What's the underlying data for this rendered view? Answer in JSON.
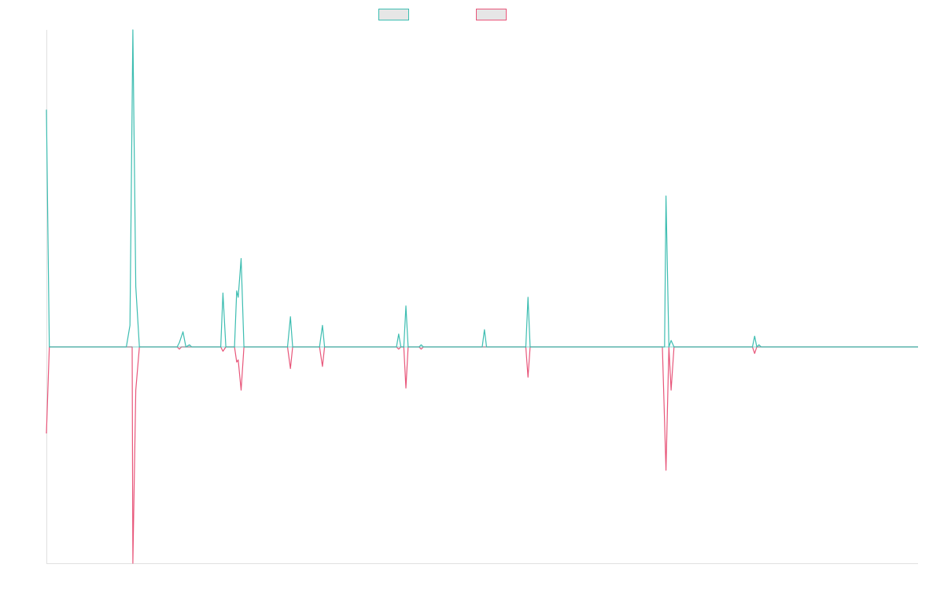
{
  "chart_data": {
    "type": "line",
    "title": "",
    "xlabel": "",
    "ylabel": "",
    "grid": false,
    "legend_position": "top-center",
    "x_range": [
      0,
      1200
    ],
    "y_range": [
      -1.0,
      1.47
    ],
    "series": [
      {
        "name": "",
        "color": "#3dbdb1",
        "points": [
          [
            0,
            1.1
          ],
          [
            4,
            0
          ],
          [
            110,
            0
          ],
          [
            115,
            0.1
          ],
          [
            119,
            1.47
          ],
          [
            123,
            0.28
          ],
          [
            128,
            0
          ],
          [
            180,
            0
          ],
          [
            183,
            0.02
          ],
          [
            188,
            0.07
          ],
          [
            192,
            0
          ],
          [
            197,
            0.01
          ],
          [
            200,
            0
          ],
          [
            240,
            0
          ],
          [
            243,
            0.25
          ],
          [
            247,
            0
          ],
          [
            259,
            0
          ],
          [
            262,
            0.26
          ],
          [
            264,
            0.23
          ],
          [
            268,
            0.41
          ],
          [
            272,
            0
          ],
          [
            296,
            0
          ],
          [
            300,
            0
          ],
          [
            332,
            0
          ],
          [
            336,
            0.14
          ],
          [
            339,
            0
          ],
          [
            376,
            0
          ],
          [
            380,
            0.1
          ],
          [
            383,
            0
          ],
          [
            414,
            0
          ],
          [
            421,
            0
          ],
          [
            482,
            0
          ],
          [
            485,
            0.06
          ],
          [
            488,
            0
          ],
          [
            492,
            0
          ],
          [
            495,
            0.19
          ],
          [
            498,
            0
          ],
          [
            513,
            0
          ],
          [
            516,
            0.01
          ],
          [
            519,
            0
          ],
          [
            600,
            0
          ],
          [
            603,
            0.08
          ],
          [
            606,
            0
          ],
          [
            640,
            0
          ],
          [
            645,
            0
          ],
          [
            660,
            0
          ],
          [
            663,
            0.23
          ],
          [
            666,
            0
          ],
          [
            705,
            0
          ],
          [
            710,
            0
          ],
          [
            848,
            0
          ],
          [
            851,
            0
          ],
          [
            853,
            0.7
          ],
          [
            857,
            0
          ],
          [
            860,
            0.03
          ],
          [
            864,
            0
          ],
          [
            911,
            0
          ],
          [
            913,
            0
          ],
          [
            915,
            0
          ],
          [
            972,
            0
          ],
          [
            975,
            0.05
          ],
          [
            978,
            0
          ],
          [
            981,
            0.01
          ],
          [
            984,
            0
          ],
          [
            1098,
            0
          ],
          [
            1101,
            0
          ],
          [
            1104,
            0
          ],
          [
            1200,
            0
          ]
        ]
      },
      {
        "name": "",
        "color": "#e8567a",
        "points": [
          [
            0,
            -0.4
          ],
          [
            4,
            0
          ],
          [
            118,
            0
          ],
          [
            119,
            -1.0
          ],
          [
            123,
            -0.2
          ],
          [
            128,
            0
          ],
          [
            180,
            0
          ],
          [
            183,
            -0.01
          ],
          [
            186,
            0
          ],
          [
            240,
            0
          ],
          [
            243,
            -0.02
          ],
          [
            247,
            0
          ],
          [
            259,
            0
          ],
          [
            262,
            -0.07
          ],
          [
            264,
            -0.06
          ],
          [
            268,
            -0.2
          ],
          [
            272,
            0
          ],
          [
            332,
            0
          ],
          [
            336,
            -0.1
          ],
          [
            339,
            0
          ],
          [
            376,
            0
          ],
          [
            380,
            -0.09
          ],
          [
            383,
            0
          ],
          [
            482,
            0
          ],
          [
            485,
            -0.01
          ],
          [
            488,
            0
          ],
          [
            492,
            0
          ],
          [
            495,
            -0.19
          ],
          [
            498,
            0
          ],
          [
            513,
            0
          ],
          [
            516,
            -0.01
          ],
          [
            519,
            0
          ],
          [
            660,
            0
          ],
          [
            663,
            -0.14
          ],
          [
            666,
            0
          ],
          [
            848,
            0
          ],
          [
            853,
            -0.57
          ],
          [
            857,
            0
          ],
          [
            860,
            -0.2
          ],
          [
            864,
            0
          ],
          [
            972,
            0
          ],
          [
            975,
            -0.03
          ],
          [
            978,
            0
          ],
          [
            1200,
            0
          ]
        ]
      }
    ]
  }
}
